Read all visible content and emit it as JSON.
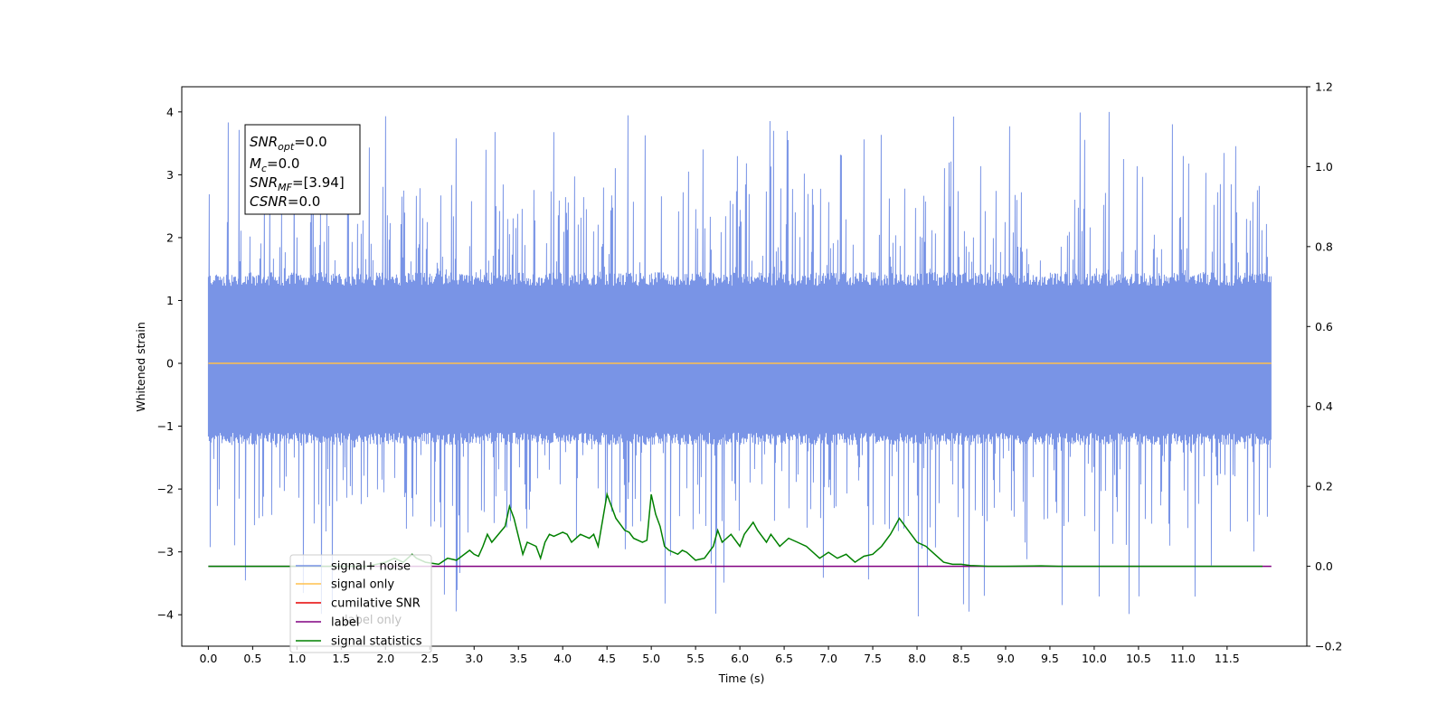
{
  "chart_data": {
    "type": "line",
    "xlabel": "Time (s)",
    "ylabel": "Whitened strain",
    "x_ticks": [
      "0.0",
      "0.5",
      "1.0",
      "1.5",
      "2.0",
      "2.5",
      "3.0",
      "3.5",
      "4.0",
      "4.5",
      "5.0",
      "5.5",
      "6.0",
      "6.5",
      "7.0",
      "7.5",
      "8.0",
      "8.5",
      "9.0",
      "9.5",
      "10.0",
      "10.5",
      "11.0",
      "11.5"
    ],
    "y_left_ticks": [
      "4",
      "3",
      "2",
      "1",
      "0",
      "−1",
      "−2",
      "−3",
      "−4"
    ],
    "y_right_ticks": [
      "1.2",
      "1.0",
      "0.8",
      "0.6",
      "0.4",
      "0.2",
      "0.0",
      "−0.2"
    ],
    "xlim": [
      -0.3,
      12.4
    ],
    "ylim_left": [
      -4.5,
      4.4
    ],
    "ylim_right": [
      -0.2,
      1.2
    ],
    "grid": false,
    "legend_placement": "lower-left",
    "legend": [
      {
        "label": "signal+ noise",
        "color": "#7994e6"
      },
      {
        "label": "signal only",
        "color": "#ffc04d"
      },
      {
        "label": "cumilative SNR",
        "color": "#e60000"
      },
      {
        "label": "label",
        "color": "#800080"
      },
      {
        "label": "signal statistics",
        "color": "#008000"
      }
    ],
    "hidden_label": "label only",
    "annotation": {
      "lines": [
        {
          "main": "SNR",
          "sub": "opt",
          "rest": "=0.0"
        },
        {
          "main": "M",
          "sub": "c",
          "rest": "=0.0"
        },
        {
          "main": "SNR",
          "sub": "MF",
          "rest": "=[3.94]"
        },
        {
          "main": "CSNR",
          "sub": "",
          "rest": "=0.0"
        }
      ]
    },
    "series": [
      {
        "name": "signal+ noise",
        "axis": "left",
        "color": "#7994e6",
        "x_range": [
          0.0,
          12.0
        ],
        "typical_band": [
          -1.3,
          1.45
        ],
        "peak_max": 4.0,
        "peak_min": -4.1,
        "note": "dense whitened noise time series"
      },
      {
        "name": "signal only",
        "axis": "left",
        "color": "#ffc04d",
        "x": [
          0.0,
          12.0
        ],
        "y": [
          0.0,
          0.0
        ]
      },
      {
        "name": "label",
        "axis": "right",
        "color": "#800080",
        "x": [
          0.0,
          12.0
        ],
        "y": [
          0.0,
          0.0
        ]
      },
      {
        "name": "signal statistics",
        "axis": "right",
        "color": "#008000",
        "x": [
          0.0,
          0.5,
          1.0,
          1.5,
          1.8,
          2.0,
          2.1,
          2.2,
          2.3,
          2.35,
          2.45,
          2.6,
          2.7,
          2.8,
          2.95,
          3.0,
          3.05,
          3.1,
          3.15,
          3.2,
          3.35,
          3.4,
          3.45,
          3.55,
          3.6,
          3.7,
          3.75,
          3.8,
          3.85,
          3.9,
          4.0,
          4.05,
          4.1,
          4.2,
          4.25,
          4.3,
          4.35,
          4.4,
          4.5,
          4.6,
          4.7,
          4.75,
          4.8,
          4.9,
          4.95,
          5.0,
          5.05,
          5.1,
          5.15,
          5.2,
          5.3,
          5.35,
          5.4,
          5.5,
          5.6,
          5.7,
          5.75,
          5.8,
          5.9,
          6.0,
          6.05,
          6.15,
          6.2,
          6.3,
          6.35,
          6.45,
          6.55,
          6.65,
          6.75,
          6.9,
          7.0,
          7.1,
          7.2,
          7.3,
          7.4,
          7.5,
          7.6,
          7.7,
          7.8,
          7.9,
          8.0,
          8.1,
          8.2,
          8.3,
          8.4,
          8.5,
          8.6,
          8.7,
          8.8,
          9.0,
          9.4,
          9.6,
          10.0,
          11.0,
          11.9
        ],
        "y": [
          0.0,
          0.0,
          0.0,
          0.0,
          0.0,
          0.01,
          0.02,
          0.01,
          0.03,
          0.02,
          0.01,
          0.005,
          0.02,
          0.015,
          0.04,
          0.03,
          0.025,
          0.05,
          0.08,
          0.06,
          0.1,
          0.15,
          0.12,
          0.03,
          0.06,
          0.05,
          0.02,
          0.06,
          0.08,
          0.075,
          0.085,
          0.08,
          0.06,
          0.08,
          0.075,
          0.07,
          0.08,
          0.05,
          0.18,
          0.12,
          0.09,
          0.085,
          0.07,
          0.06,
          0.065,
          0.18,
          0.13,
          0.1,
          0.05,
          0.04,
          0.03,
          0.04,
          0.035,
          0.015,
          0.02,
          0.05,
          0.09,
          0.06,
          0.08,
          0.05,
          0.08,
          0.11,
          0.09,
          0.06,
          0.08,
          0.05,
          0.07,
          0.06,
          0.05,
          0.02,
          0.035,
          0.02,
          0.03,
          0.01,
          0.025,
          0.03,
          0.05,
          0.08,
          0.12,
          0.09,
          0.06,
          0.05,
          0.03,
          0.01,
          0.005,
          0.005,
          0.002,
          0.001,
          0.0,
          0.0,
          0.001,
          0.0,
          0.0,
          0.0,
          0.0
        ]
      }
    ]
  }
}
